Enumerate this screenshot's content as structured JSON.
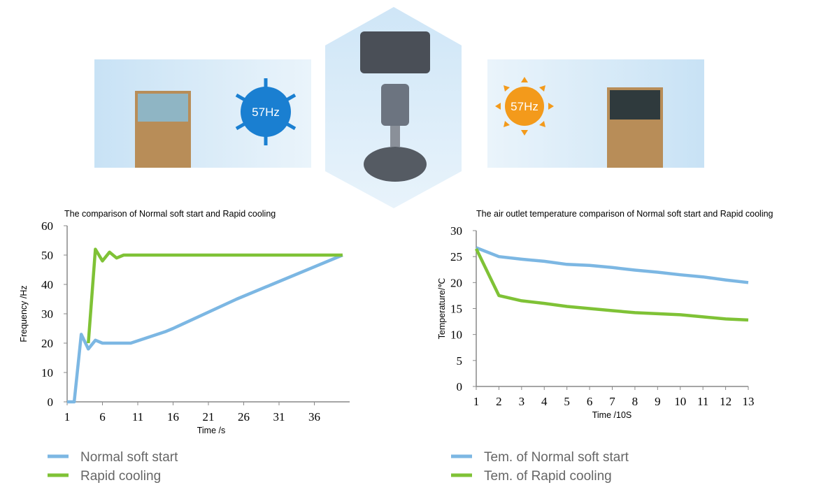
{
  "badges": [
    "57Hz",
    "57Hz"
  ],
  "chart_data": [
    {
      "type": "line",
      "title": "The comparison of Normal soft start and Rapid cooling",
      "x_label": "Time /s",
      "y_label": "Frequency /Hz",
      "xlim": [
        1,
        41
      ],
      "xticks": [
        1,
        6,
        11,
        16,
        21,
        26,
        31,
        36
      ],
      "ylim": [
        0,
        60
      ],
      "yticks": [
        0,
        10,
        20,
        30,
        40,
        50,
        60
      ],
      "series": [
        {
          "name": "Normal soft start",
          "color": "#7cb7e3",
          "x": [
            1,
            2,
            3,
            4,
            5,
            6,
            10,
            15,
            16,
            25,
            30,
            40
          ],
          "values": [
            0,
            0,
            23,
            18,
            21,
            20,
            20,
            24,
            25,
            35,
            40,
            50
          ]
        },
        {
          "name": "Rapid cooling",
          "color": "#7fc236",
          "x": [
            4,
            5,
            6,
            7,
            8,
            9,
            40
          ],
          "values": [
            20,
            52,
            48,
            51,
            49,
            50,
            50
          ]
        }
      ]
    },
    {
      "type": "line",
      "title": "The air outlet temperature comparison of Normal soft start and Rapid cooling",
      "x_label": "Time /10S",
      "y_label": "Temperature/℃",
      "xlim": [
        1,
        13
      ],
      "xticks": [
        1,
        2,
        3,
        4,
        5,
        6,
        7,
        8,
        9,
        10,
        11,
        12,
        13
      ],
      "ylim": [
        0,
        30
      ],
      "yticks": [
        0,
        5,
        10,
        15,
        20,
        25,
        30
      ],
      "x": [
        1,
        2,
        3,
        4,
        5,
        6,
        7,
        8,
        9,
        10,
        11,
        12,
        13
      ],
      "series": [
        {
          "name": "Tem. of Normal soft start",
          "color": "#7cb7e3",
          "values": [
            26.7,
            25,
            24.5,
            24.1,
            23.5,
            23.3,
            22.9,
            22.4,
            22,
            21.5,
            21.1,
            20.5,
            20
          ]
        },
        {
          "name": "Tem. of Rapid cooling",
          "color": "#7fc236",
          "values": [
            26.5,
            17.5,
            16.5,
            16,
            15.4,
            15,
            14.6,
            14.2,
            14,
            13.8,
            13.4,
            13,
            12.8
          ]
        }
      ]
    }
  ]
}
